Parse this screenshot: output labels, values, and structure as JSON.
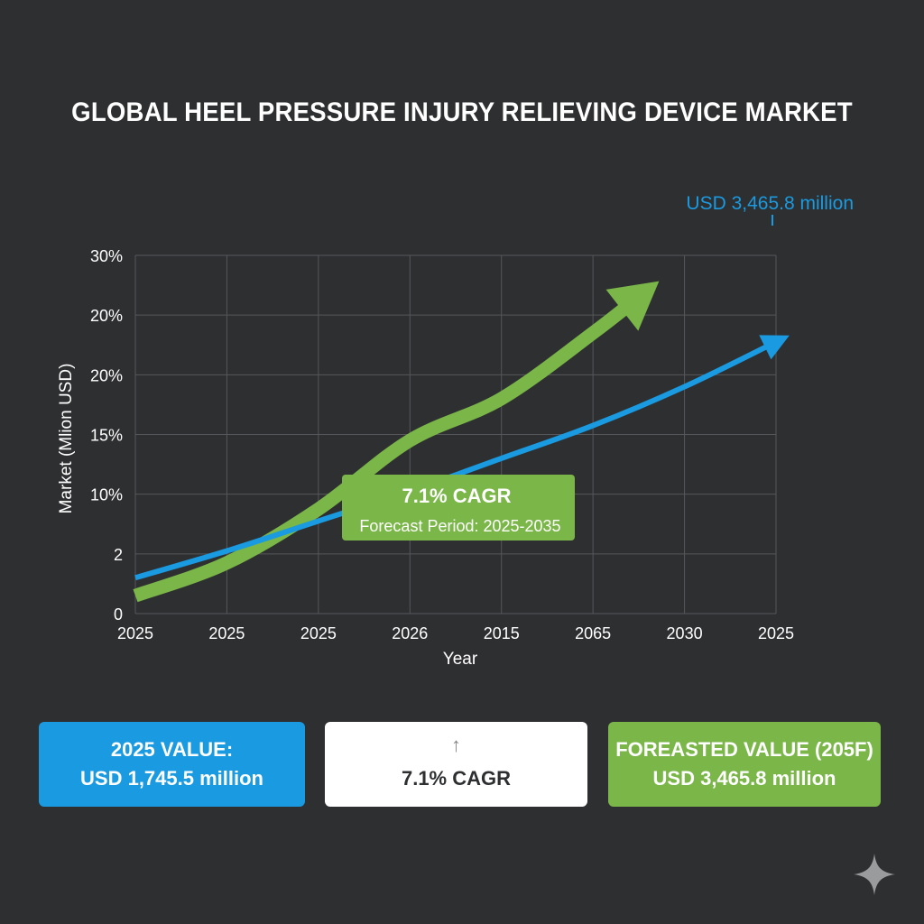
{
  "title": "GLOBAL HEEL PRESSURE INJURY RELIEVING DEVICE MARKET",
  "colors": {
    "background": "#2e2f31",
    "blue": "#1a9ae0",
    "green": "#7ab648",
    "grid": "#55575a"
  },
  "chart_data": {
    "type": "line",
    "title": "GLOBAL HEEL PRESSURE INJURY RELIEVING DEVICE MARKET",
    "xlabel": "Year",
    "ylabel": "Market (Mlion USD)",
    "x_tick_labels": [
      "2025",
      "2025",
      "2025",
      "2026",
      "2015",
      "2065",
      "2030",
      "2025"
    ],
    "y_tick_labels": [
      "0",
      "2",
      "10%",
      "15%",
      "20%",
      "20%",
      "30%"
    ],
    "grid": true,
    "series": [
      {
        "name": "blue-trend",
        "color": "#1a9ae0",
        "points": [
          [
            0,
            0.6
          ],
          [
            1,
            1.05
          ],
          [
            2,
            1.55
          ],
          [
            3,
            2.05
          ],
          [
            4,
            2.6
          ],
          [
            5,
            3.15
          ],
          [
            6,
            3.8
          ],
          [
            7,
            4.55
          ]
        ],
        "end_label": "USD 3,465.8 million"
      },
      {
        "name": "green-trend",
        "color": "#7ab648",
        "points": [
          [
            0,
            0.3
          ],
          [
            1,
            0.85
          ],
          [
            2,
            1.75
          ],
          [
            3,
            2.9
          ],
          [
            4,
            3.6
          ],
          [
            5,
            4.7
          ],
          [
            5.5,
            5.3
          ]
        ]
      }
    ],
    "annotation": {
      "line1": "7.1% CAGR",
      "line2": "Forecast Period: 2025-2035"
    }
  },
  "cards": {
    "left": {
      "line1": "2025 VALUE:",
      "line2": "USD 1,745.5 million"
    },
    "middle": {
      "arrow": "↑",
      "text": "7.1% CAGR"
    },
    "right": {
      "line1": "FOREASTED VALUE (205F)",
      "line2": "USD 3,465.8 million"
    }
  }
}
